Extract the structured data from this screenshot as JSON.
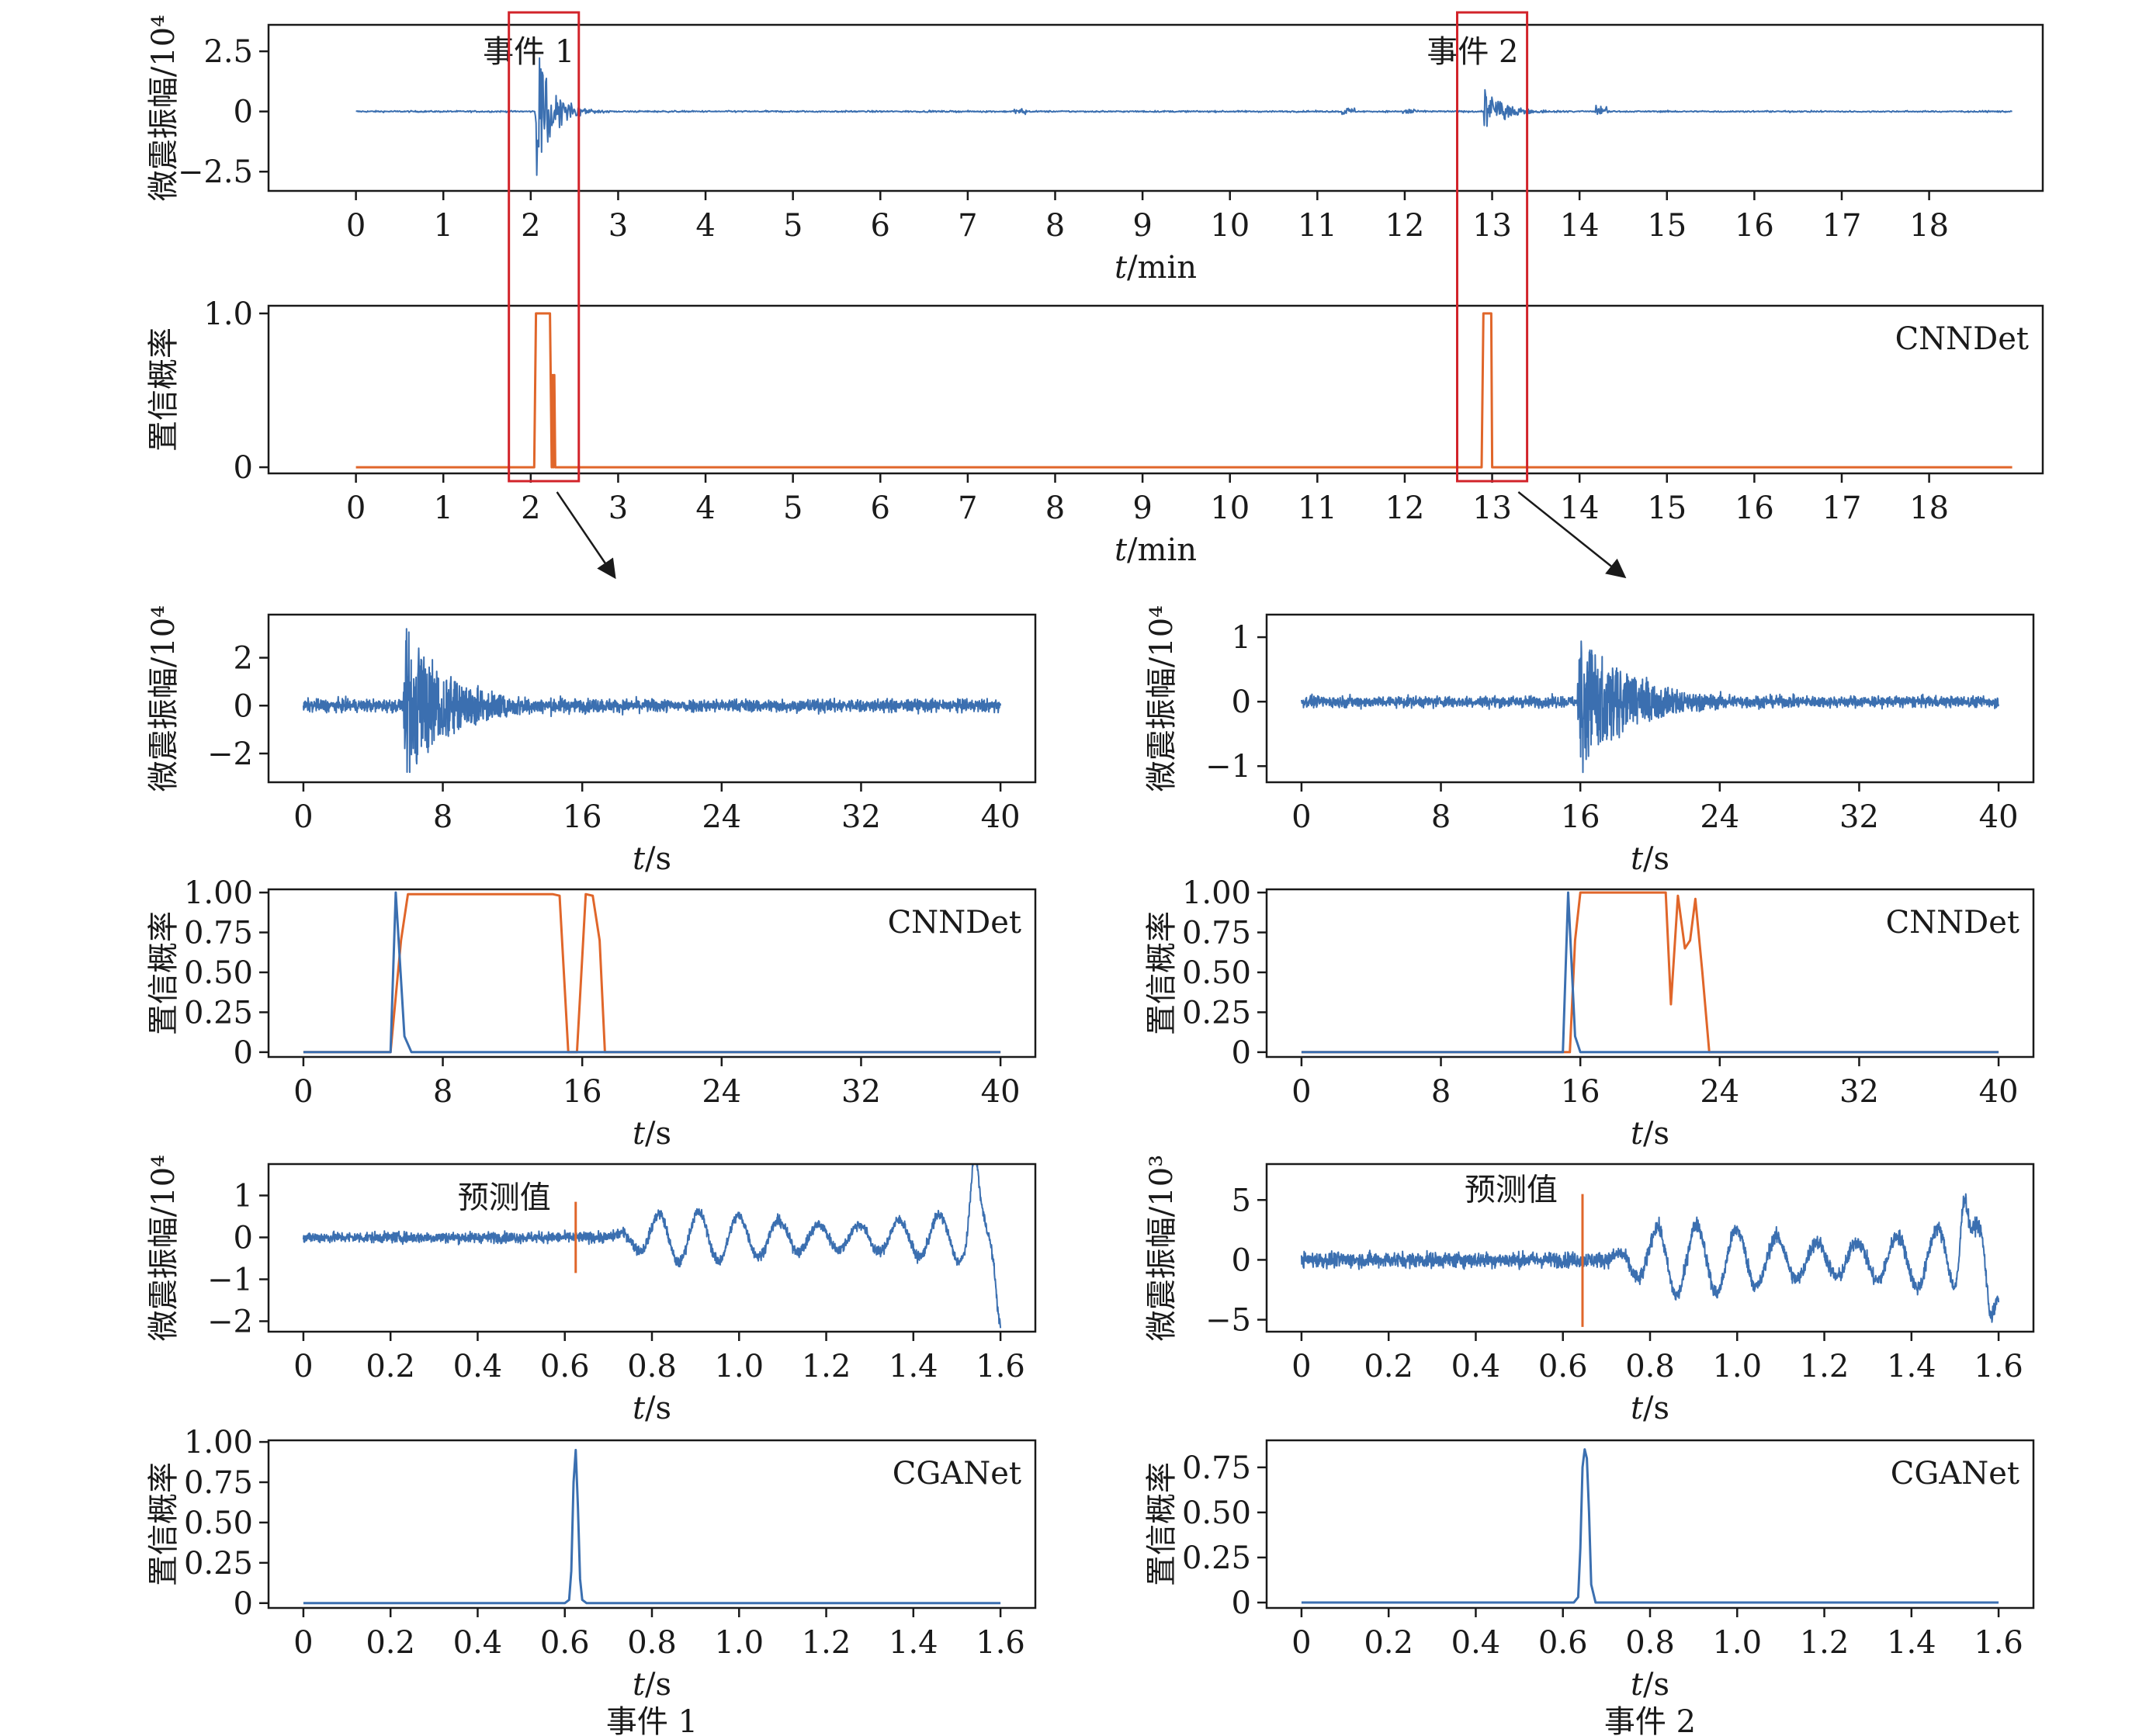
{
  "colors": {
    "wave": "#3b6fb0",
    "orange": "#e0662a",
    "axis": "#1a1a1a",
    "box": "#d2232a"
  },
  "chart_data": [
    {
      "id": "overview-wave",
      "type": "line",
      "ylabel": "微震振幅/10⁴",
      "xlabel_var": "t",
      "xlabel_unit": "/min",
      "xlim": [
        -1,
        19.3
      ],
      "ylim": [
        -3.3,
        3.6
      ],
      "xticks": [
        0,
        1,
        2,
        3,
        4,
        5,
        6,
        7,
        8,
        9,
        10,
        11,
        12,
        13,
        14,
        15,
        16,
        17,
        18
      ],
      "yticks": [
        -2.5,
        0,
        2.5
      ],
      "ytick_labels": [
        "−2.5",
        "0",
        "2.5"
      ],
      "annotations": [
        {
          "text": "事件 1",
          "x": 1,
          "y": 2.5
        },
        {
          "text": "事件 2",
          "x": 11.8,
          "y": 2.5
        }
      ],
      "series": [
        {
          "color": "wave",
          "signal": {
            "t0": 0,
            "t1": 18.95,
            "noise": 0.03,
            "noise_extra": [
              [
                7.6,
                0.12
              ],
              [
                11.35,
                0.15
              ],
              [
                12.05,
                0.15
              ],
              [
                14.25,
                0.22
              ]
            ],
            "events": [
              {
                "t": 2.05,
                "amp": 3.2,
                "decay": 0.18
              },
              {
                "t": 12.9,
                "amp": 1.05,
                "decay": 0.2
              }
            ]
          }
        }
      ]
    },
    {
      "id": "overview-conf",
      "type": "line",
      "ylabel": "置信概率",
      "xlabel_var": "t",
      "xlabel_unit": "/min",
      "label": "CNNDet",
      "xlim": [
        -1,
        19.3
      ],
      "ylim": [
        -0.04,
        1.05
      ],
      "xticks": [
        0,
        1,
        2,
        3,
        4,
        5,
        6,
        7,
        8,
        9,
        10,
        11,
        12,
        13,
        14,
        15,
        16,
        17,
        18
      ],
      "yticks": [
        0,
        1.0
      ],
      "ytick_labels": [
        "0",
        "1.0"
      ],
      "series": [
        {
          "color": "orange",
          "x": [
            0,
            2.04,
            2.06,
            2.22,
            2.24,
            2.25,
            2.26,
            2.27,
            2.28,
            12.88,
            12.9,
            12.99,
            13.0,
            18.95
          ],
          "y": [
            0,
            0,
            1,
            1,
            0,
            0.6,
            0,
            0.6,
            0,
            0,
            1,
            1,
            0,
            0
          ]
        }
      ]
    },
    {
      "id": "event1-wave",
      "type": "line",
      "ylabel": "微震振幅/10⁴",
      "xlabel_var": "t",
      "xlabel_unit": "/s",
      "xlim": [
        -2,
        42
      ],
      "ylim": [
        -3.2,
        3.8
      ],
      "xticks": [
        0,
        8,
        16,
        24,
        32,
        40
      ],
      "yticks": [
        -2,
        0,
        2
      ],
      "ytick_labels": [
        "−2",
        "0",
        "2"
      ],
      "series": [
        {
          "color": "wave",
          "signal": {
            "t0": 0,
            "t1": 40,
            "noise": 0.25,
            "events": [
              {
                "t": 5.7,
                "amp": 3.2,
                "decay": 2.6
              }
            ]
          }
        }
      ]
    },
    {
      "id": "event1-conf",
      "type": "line",
      "ylabel": "置信概率",
      "xlabel_var": "t",
      "xlabel_unit": "/s",
      "label": "CNNDet",
      "xlim": [
        -2,
        42
      ],
      "ylim": [
        -0.03,
        1.02
      ],
      "xticks": [
        0,
        8,
        16,
        24,
        32,
        40
      ],
      "yticks": [
        0,
        0.25,
        0.5,
        0.75,
        1.0
      ],
      "ytick_labels": [
        "0",
        "0.25",
        "0.50",
        "0.75",
        "1.00"
      ],
      "series": [
        {
          "color": "orange",
          "x": [
            0,
            5,
            5.6,
            6,
            14.3,
            14.7,
            15.2,
            15.7,
            16.2,
            16.6,
            17.0,
            17.3,
            40
          ],
          "y": [
            0,
            0,
            0.7,
            0.99,
            0.99,
            0.98,
            0,
            0,
            0.99,
            0.98,
            0.7,
            0,
            0
          ]
        },
        {
          "color": "wave",
          "x": [
            0,
            5,
            5.3,
            5.8,
            6.2,
            7,
            40
          ],
          "y": [
            0,
            0,
            1,
            0.1,
            0,
            0,
            0
          ]
        }
      ]
    },
    {
      "id": "event2-wave",
      "type": "line",
      "ylabel": "微震振幅/10⁴",
      "xlabel_var": "t",
      "xlabel_unit": "/s",
      "xlim": [
        -2,
        42
      ],
      "ylim": [
        -1.25,
        1.35
      ],
      "xticks": [
        0,
        8,
        16,
        24,
        32,
        40
      ],
      "yticks": [
        -1,
        0,
        1
      ],
      "ytick_labels": [
        "−1",
        "0",
        "1"
      ],
      "series": [
        {
          "color": "wave",
          "signal": {
            "t0": 0,
            "t1": 40,
            "noise": 0.08,
            "events": [
              {
                "t": 15.8,
                "amp": 1.15,
                "decay": 2.8
              }
            ]
          }
        }
      ]
    },
    {
      "id": "event2-conf",
      "type": "line",
      "ylabel": "置信概率",
      "xlabel_var": "t",
      "xlabel_unit": "/s",
      "label": "CNNDet",
      "xlim": [
        -2,
        42
      ],
      "ylim": [
        -0.03,
        1.02
      ],
      "xticks": [
        0,
        8,
        16,
        24,
        32,
        40
      ],
      "yticks": [
        0,
        0.25,
        0.5,
        0.75,
        1.0
      ],
      "ytick_labels": [
        "0",
        "0.25",
        "0.50",
        "0.75",
        "1.00"
      ],
      "series": [
        {
          "color": "orange",
          "x": [
            0,
            15.4,
            15.7,
            16,
            20.9,
            21.2,
            21.6,
            22.0,
            22.3,
            22.6,
            23.0,
            23.4,
            40
          ],
          "y": [
            0,
            0,
            0.7,
            1,
            1,
            0.3,
            0.98,
            0.65,
            0.7,
            0.96,
            0.5,
            0,
            0
          ]
        },
        {
          "color": "wave",
          "x": [
            0,
            15,
            15.3,
            15.7,
            16,
            17,
            40
          ],
          "y": [
            0,
            0,
            1,
            0.1,
            0,
            0,
            0
          ]
        }
      ]
    },
    {
      "id": "event1-zoom-wave",
      "type": "line",
      "ylabel": "微震振幅/10⁴",
      "xlabel_var": "t",
      "xlabel_unit": "/s",
      "xlim": [
        -0.08,
        1.68
      ],
      "ylim": [
        -2.25,
        1.75
      ],
      "xticks": [
        0,
        0.2,
        0.4,
        0.6,
        0.8,
        1.0,
        1.2,
        1.4,
        1.6
      ],
      "xtick_labels": [
        "0",
        "0.2",
        "0.4",
        "0.6",
        "0.8",
        "1.0",
        "1.2",
        "1.4",
        "1.6"
      ],
      "yticks": [
        -2,
        -1,
        0,
        1
      ],
      "ytick_labels": [
        "−2",
        "−1",
        "0",
        "1"
      ],
      "pick": {
        "text": "预测值",
        "x": 0.625,
        "y0": -0.85,
        "y1": 0.85
      },
      "series": [
        {
          "color": "wave",
          "signal": {
            "t0": 0,
            "t1": 1.6,
            "noise": 0.12,
            "osc_start": 0.7,
            "osc_amp": 0.45,
            "period": 0.092,
            "spike": [
              1.54,
              1.55,
              1.6,
              -2.1
            ]
          }
        }
      ]
    },
    {
      "id": "event1-zoom-conf",
      "type": "line",
      "ylabel": "置信概率",
      "xlabel_var": "t",
      "xlabel_unit": "/s",
      "label": "CGANet",
      "caption": "事件 1",
      "xlim": [
        -0.08,
        1.68
      ],
      "ylim": [
        -0.03,
        1.01
      ],
      "xticks": [
        0,
        0.2,
        0.4,
        0.6,
        0.8,
        1.0,
        1.2,
        1.4,
        1.6
      ],
      "xtick_labels": [
        "0",
        "0.2",
        "0.4",
        "0.6",
        "0.8",
        "1.0",
        "1.2",
        "1.4",
        "1.6"
      ],
      "yticks": [
        0,
        0.25,
        0.5,
        0.75,
        1.0
      ],
      "ytick_labels": [
        "0",
        "0.25",
        "0.50",
        "0.75",
        "1.00"
      ],
      "series": [
        {
          "color": "wave",
          "x": [
            0,
            0.6,
            0.61,
            0.615,
            0.62,
            0.625,
            0.63,
            0.635,
            0.64,
            0.65,
            1.6
          ],
          "y": [
            0,
            0,
            0.02,
            0.2,
            0.75,
            0.95,
            0.6,
            0.15,
            0.02,
            0,
            0
          ]
        }
      ]
    },
    {
      "id": "event2-zoom-wave",
      "type": "line",
      "ylabel": "微震振幅/10³",
      "xlabel_var": "t",
      "xlabel_unit": "/s",
      "xlim": [
        -0.08,
        1.68
      ],
      "ylim": [
        -6,
        8
      ],
      "xticks": [
        0,
        0.2,
        0.4,
        0.6,
        0.8,
        1.0,
        1.2,
        1.4,
        1.6
      ],
      "xtick_labels": [
        "0",
        "0.2",
        "0.4",
        "0.6",
        "0.8",
        "1.0",
        "1.2",
        "1.4",
        "1.6"
      ],
      "yticks": [
        -5,
        0,
        5
      ],
      "ytick_labels": [
        "−5",
        "0",
        "5"
      ],
      "pick": {
        "text": "预测值",
        "x": 0.645,
        "y0": -5.6,
        "y1": 5.5
      },
      "series": [
        {
          "color": "wave",
          "signal": {
            "t0": 0,
            "t1": 1.6,
            "noise": 0.6,
            "osc_start": 0.7,
            "osc_amp": 2.2,
            "period": 0.092,
            "spike": [
              1.52,
              6.5,
              1.58,
              -4.5
            ]
          }
        }
      ]
    },
    {
      "id": "event2-zoom-conf",
      "type": "line",
      "ylabel": "置信概率",
      "xlabel_var": "t",
      "xlabel_unit": "/s",
      "label": "CGANet",
      "caption": "事件 2",
      "xlim": [
        -0.08,
        1.68
      ],
      "ylim": [
        -0.03,
        0.9
      ],
      "xticks": [
        0,
        0.2,
        0.4,
        0.6,
        0.8,
        1.0,
        1.2,
        1.4,
        1.6
      ],
      "xtick_labels": [
        "0",
        "0.2",
        "0.4",
        "0.6",
        "0.8",
        "1.0",
        "1.2",
        "1.4",
        "1.6"
      ],
      "yticks": [
        0,
        0.25,
        0.5,
        0.75
      ],
      "ytick_labels": [
        "0",
        "0.25",
        "0.50",
        "0.75"
      ],
      "series": [
        {
          "color": "wave",
          "x": [
            0,
            0.625,
            0.635,
            0.64,
            0.645,
            0.65,
            0.655,
            0.66,
            0.665,
            0.675,
            1.6
          ],
          "y": [
            0,
            0,
            0.03,
            0.3,
            0.75,
            0.85,
            0.8,
            0.5,
            0.1,
            0,
            0
          ]
        }
      ]
    }
  ]
}
